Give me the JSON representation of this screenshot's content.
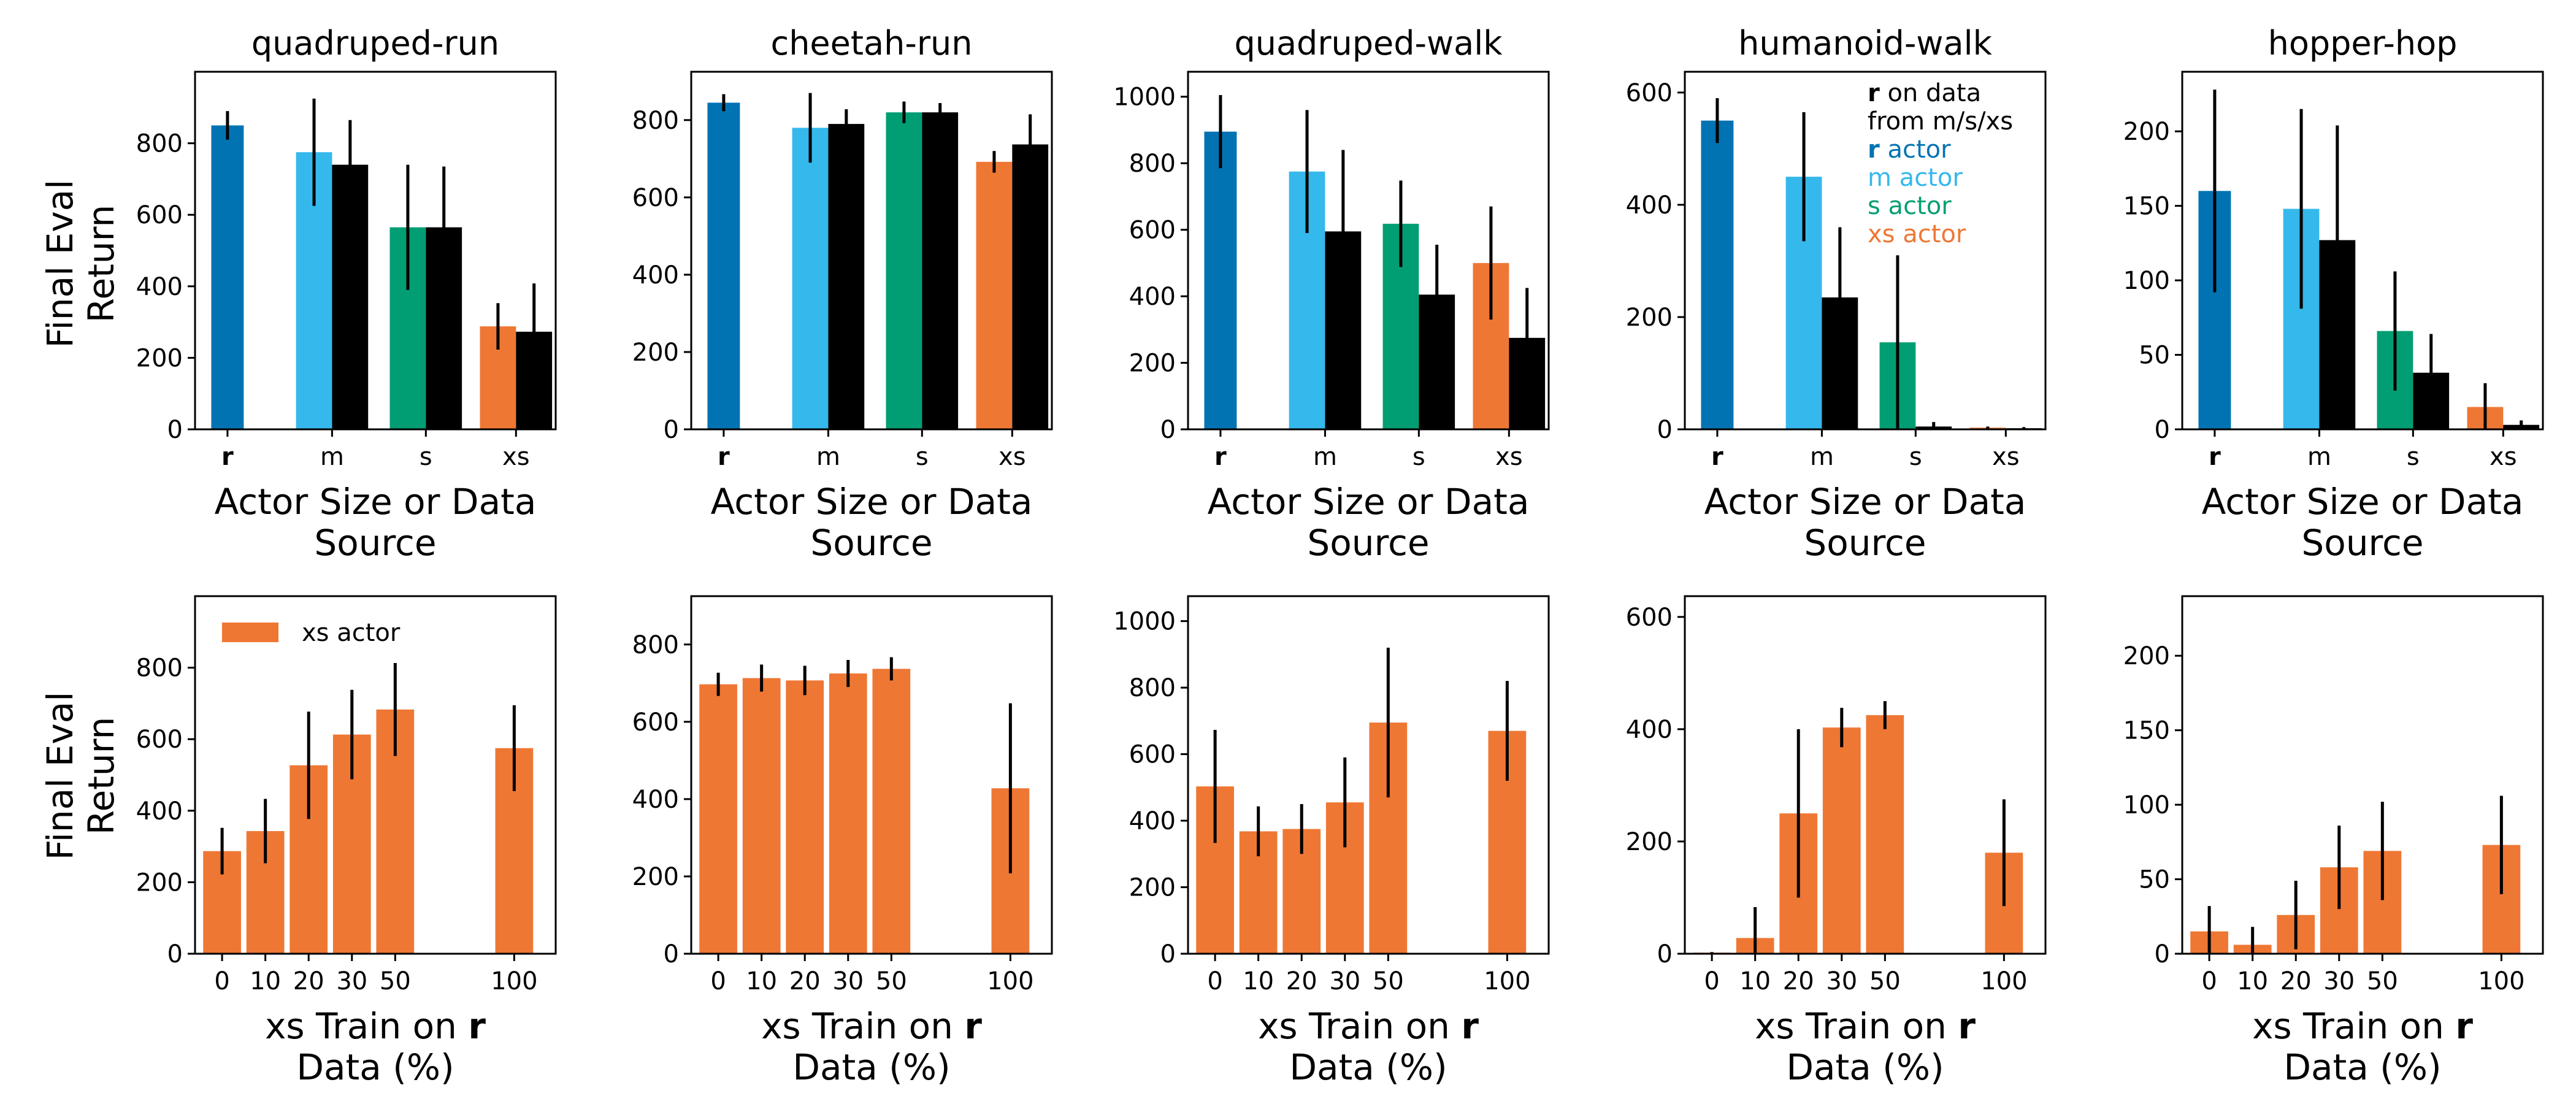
{
  "figure": {
    "y_axis_label_line1": "Final Eval",
    "y_axis_label_line2": "Return",
    "top_x_label_line1": "Actor Size or Data",
    "top_x_label_line2": "Source",
    "bottom_x_label_prefix": "xs Train on ",
    "bottom_x_label_bold": "r",
    "bottom_x_label_line2": "Data (%)",
    "colors": {
      "r": "#0173b2",
      "m": "#35b8ec",
      "s": "#029e73",
      "xs": "#ef7734",
      "data": "#000000",
      "errorbar": "#000000"
    }
  },
  "legend_top": {
    "line1_bold": "r",
    "line1_rest": " on data",
    "line2": "from m/s/xs",
    "r_bold": "r",
    "r_rest": " actor",
    "m_label": "m actor",
    "s_label": "s actor",
    "xs_label": "xs actor"
  },
  "legend_bottom": {
    "label": "xs actor"
  },
  "chart_data": [
    {
      "type": "bar",
      "row": "top",
      "title": "quadruped-run",
      "categories": [
        "r",
        "m",
        "s",
        "xs"
      ],
      "series": [
        {
          "name": "actor",
          "values": [
            850,
            775,
            565,
            288
          ],
          "errors": [
            40,
            150,
            175,
            65
          ]
        },
        {
          "name": "r on data",
          "values": [
            null,
            740,
            565,
            273
          ],
          "errors": [
            null,
            125,
            170,
            135
          ]
        }
      ],
      "yticks": [
        0,
        200,
        400,
        600,
        800
      ],
      "ylim": [
        0,
        1000
      ],
      "xlabel": "Actor Size or Data Source",
      "ylabel": "Final Eval Return"
    },
    {
      "type": "bar",
      "row": "top",
      "title": "cheetah-run",
      "categories": [
        "r",
        "m",
        "s",
        "xs"
      ],
      "series": [
        {
          "name": "actor",
          "values": [
            845,
            780,
            820,
            692
          ],
          "errors": [
            22,
            90,
            28,
            28
          ]
        },
        {
          "name": "r on data",
          "values": [
            null,
            790,
            820,
            737
          ],
          "errors": [
            null,
            38,
            24,
            78
          ]
        }
      ],
      "yticks": [
        0,
        200,
        400,
        600,
        800
      ],
      "ylim": [
        0,
        925
      ],
      "xlabel": "Actor Size or Data Source",
      "ylabel": ""
    },
    {
      "type": "bar",
      "row": "top",
      "title": "quadruped-walk",
      "categories": [
        "r",
        "m",
        "s",
        "xs"
      ],
      "series": [
        {
          "name": "actor",
          "values": [
            895,
            775,
            618,
            500
          ],
          "errors": [
            110,
            185,
            130,
            170
          ]
        },
        {
          "name": "r on data",
          "values": [
            null,
            595,
            405,
            275
          ],
          "errors": [
            null,
            245,
            150,
            150
          ]
        }
      ],
      "yticks": [
        0,
        200,
        400,
        600,
        800,
        1000
      ],
      "ylim": [
        0,
        1075
      ],
      "xlabel": "Actor Size or Data Source",
      "ylabel": ""
    },
    {
      "type": "bar",
      "row": "top",
      "title": "humanoid-walk",
      "categories": [
        "r",
        "m",
        "s",
        "xs"
      ],
      "series": [
        {
          "name": "actor",
          "values": [
            550,
            450,
            155,
            3
          ],
          "errors": [
            40,
            115,
            155,
            2
          ]
        },
        {
          "name": "r on data",
          "values": [
            null,
            235,
            5,
            2
          ],
          "errors": [
            null,
            125,
            8,
            2
          ]
        }
      ],
      "yticks": [
        0,
        200,
        400,
        600
      ],
      "ylim": [
        0,
        637
      ],
      "xlabel": "Actor Size or Data Source",
      "ylabel": ""
    },
    {
      "type": "bar",
      "row": "top",
      "title": "hopper-hop",
      "categories": [
        "r",
        "m",
        "s",
        "xs"
      ],
      "series": [
        {
          "name": "actor",
          "values": [
            160,
            148,
            66,
            15
          ],
          "errors": [
            68,
            67,
            40,
            16
          ]
        },
        {
          "name": "r on data",
          "values": [
            null,
            127,
            38,
            3
          ],
          "errors": [
            null,
            77,
            26,
            3
          ]
        }
      ],
      "yticks": [
        0,
        50,
        100,
        150,
        200
      ],
      "ylim": [
        0,
        240
      ],
      "xlabel": "Actor Size or Data Source",
      "ylabel": ""
    },
    {
      "type": "bar",
      "row": "bottom",
      "title": "",
      "categories": [
        "0",
        "10",
        "20",
        "30",
        "50",
        "100"
      ],
      "series": [
        {
          "name": "xs actor",
          "values": [
            287,
            343,
            527,
            613,
            683,
            575
          ],
          "errors": [
            65,
            90,
            150,
            125,
            130,
            120
          ]
        }
      ],
      "yticks": [
        0,
        200,
        400,
        600,
        800
      ],
      "ylim": [
        0,
        1000
      ],
      "xlabel": "xs Train on r Data (%)",
      "ylabel": "Final Eval Return"
    },
    {
      "type": "bar",
      "row": "bottom",
      "title": "",
      "categories": [
        "0",
        "10",
        "20",
        "30",
        "50",
        "100"
      ],
      "series": [
        {
          "name": "xs actor",
          "values": [
            697,
            713,
            707,
            725,
            737,
            428
          ],
          "errors": [
            30,
            35,
            38,
            35,
            30,
            220
          ]
        }
      ],
      "yticks": [
        0,
        200,
        400,
        600,
        800
      ],
      "ylim": [
        0,
        925
      ],
      "xlabel": "xs Train on r Data (%)",
      "ylabel": ""
    },
    {
      "type": "bar",
      "row": "bottom",
      "title": "",
      "categories": [
        "0",
        "10",
        "20",
        "30",
        "50",
        "100"
      ],
      "series": [
        {
          "name": "xs actor",
          "values": [
            503,
            368,
            375,
            455,
            695,
            670
          ],
          "errors": [
            170,
            75,
            75,
            135,
            225,
            150
          ]
        }
      ],
      "yticks": [
        0,
        200,
        400,
        600,
        800,
        1000
      ],
      "ylim": [
        0,
        1075
      ],
      "xlabel": "xs Train on r Data (%)",
      "ylabel": ""
    },
    {
      "type": "bar",
      "row": "bottom",
      "title": "",
      "categories": [
        "0",
        "10",
        "20",
        "30",
        "50",
        "100"
      ],
      "series": [
        {
          "name": "xs actor",
          "values": [
            2,
            28,
            250,
            403,
            425,
            180
          ],
          "errors": [
            1,
            55,
            150,
            35,
            25,
            95
          ]
        }
      ],
      "yticks": [
        0,
        200,
        400,
        600
      ],
      "ylim": [
        0,
        637
      ],
      "xlabel": "xs Train on r Data (%)",
      "ylabel": ""
    },
    {
      "type": "bar",
      "row": "bottom",
      "title": "",
      "categories": [
        "0",
        "10",
        "20",
        "30",
        "50",
        "100"
      ],
      "series": [
        {
          "name": "xs actor",
          "values": [
            15,
            6,
            26,
            58,
            69,
            73
          ],
          "errors": [
            17,
            12,
            23,
            28,
            33,
            33
          ]
        }
      ],
      "yticks": [
        0,
        50,
        100,
        150,
        200
      ],
      "ylim": [
        0,
        240
      ],
      "xlabel": "xs Train on r Data (%)",
      "ylabel": ""
    }
  ]
}
